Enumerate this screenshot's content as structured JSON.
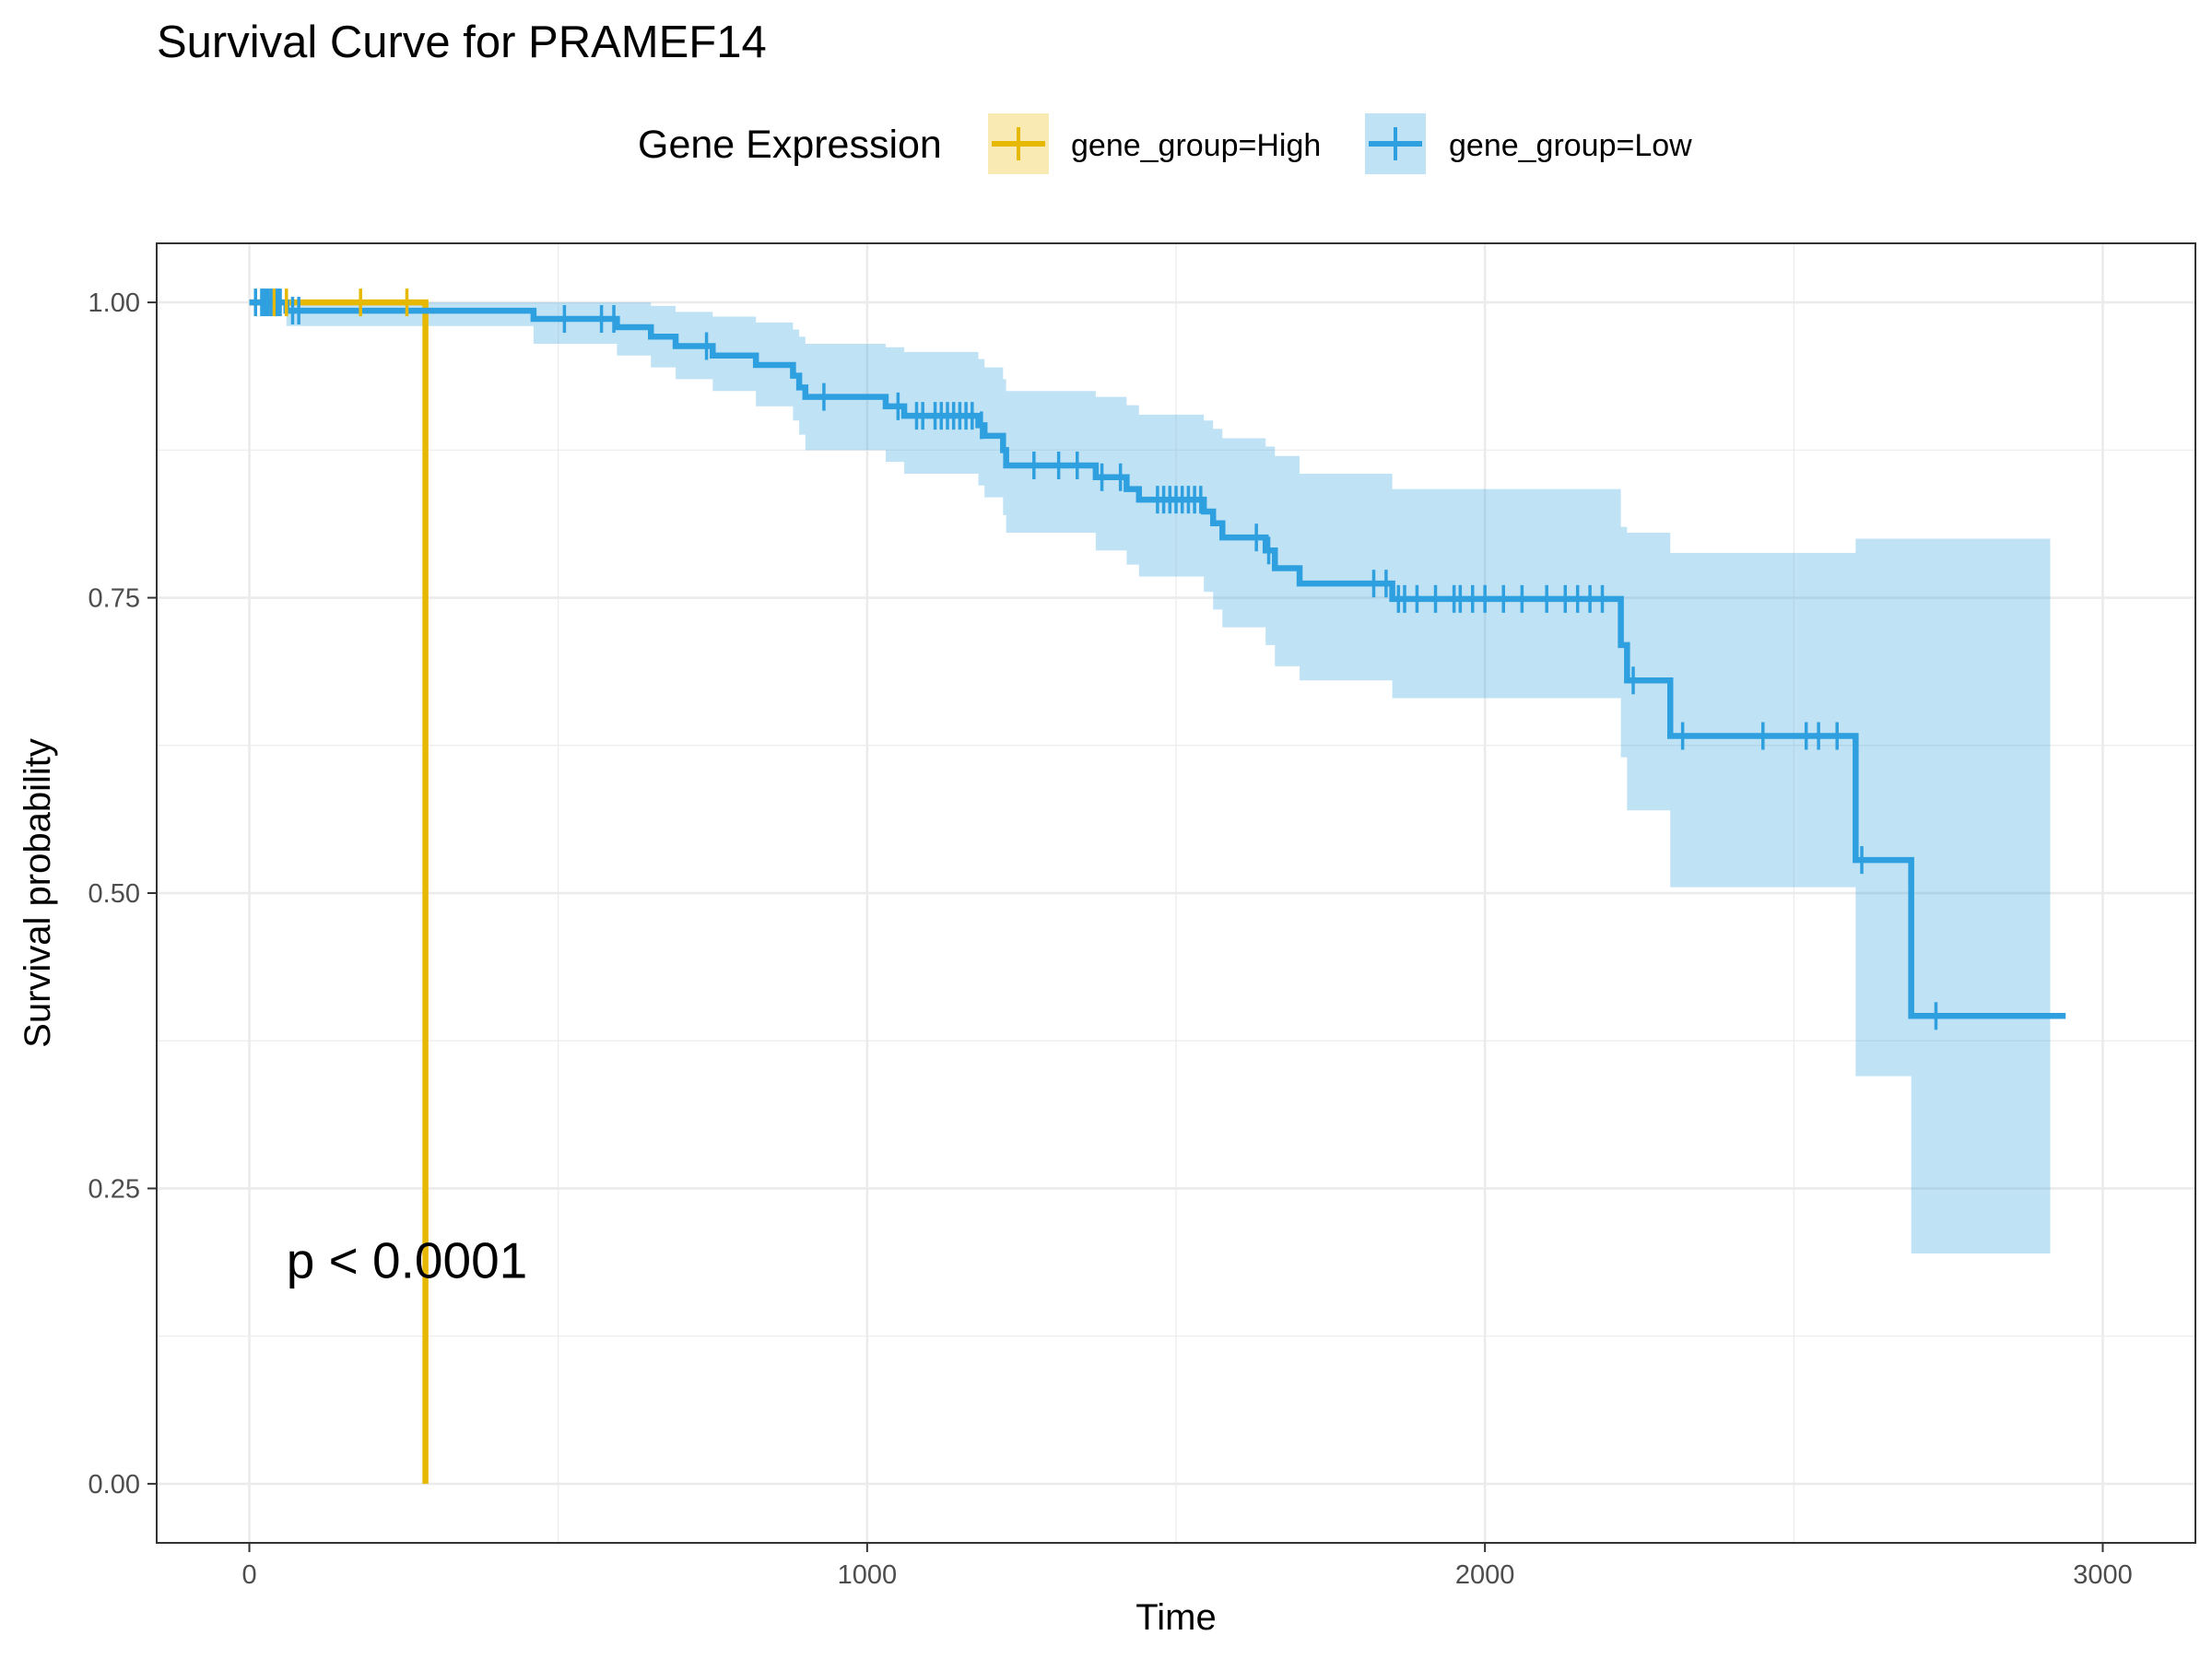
{
  "chart_data": {
    "type": "line",
    "subtype": "kaplan-meier",
    "title": "Survival Curve for PRAMEF14",
    "xlabel": "Time",
    "ylabel": "Survival probability",
    "xlim": [
      -150,
      3150
    ],
    "ylim": [
      -0.05,
      1.05
    ],
    "x_ticks": [
      0,
      1000,
      2000,
      3000
    ],
    "x_tick_labels": [
      "0",
      "1000",
      "2000",
      "3000"
    ],
    "y_ticks": [
      0,
      0.25,
      0.5,
      0.75,
      1.0
    ],
    "y_tick_labels": [
      "0.00",
      "0.25",
      "0.50",
      "0.75",
      "1.00"
    ],
    "grid": true,
    "legend": {
      "title": "Gene Expression",
      "position": "top"
    },
    "annotation": "p < 0.0001",
    "annotation_pos": {
      "x": 60,
      "y": 0.19
    },
    "series": [
      {
        "name": "gene_group=High",
        "color": "#E7B800",
        "steps": [
          [
            0,
            1.0
          ],
          [
            285,
            1.0
          ],
          [
            285,
            0.0
          ]
        ],
        "censor": [
          40,
          60,
          180,
          255
        ],
        "ci": []
      },
      {
        "name": "gene_group=Low",
        "color": "#2E9FDF",
        "steps": [
          [
            0,
            1.0
          ],
          [
            60,
            0.993
          ],
          [
            460,
            0.986
          ],
          [
            595,
            0.979
          ],
          [
            650,
            0.971
          ],
          [
            690,
            0.963
          ],
          [
            750,
            0.955
          ],
          [
            820,
            0.947
          ],
          [
            880,
            0.938
          ],
          [
            890,
            0.928
          ],
          [
            900,
            0.92
          ],
          [
            1030,
            0.912
          ],
          [
            1060,
            0.904
          ],
          [
            1180,
            0.896
          ],
          [
            1190,
            0.887
          ],
          [
            1220,
            0.875
          ],
          [
            1225,
            0.862
          ],
          [
            1370,
            0.852
          ],
          [
            1420,
            0.842
          ],
          [
            1440,
            0.833
          ],
          [
            1545,
            0.823
          ],
          [
            1560,
            0.813
          ],
          [
            1575,
            0.801
          ],
          [
            1645,
            0.79
          ],
          [
            1660,
            0.775
          ],
          [
            1700,
            0.762
          ],
          [
            1850,
            0.749
          ],
          [
            2220,
            0.71
          ],
          [
            2230,
            0.68
          ],
          [
            2300,
            0.633
          ],
          [
            2600,
            0.528
          ],
          [
            2690,
            0.396
          ],
          [
            2940,
            0.396
          ]
        ],
        "censor": [
          10,
          20,
          25,
          30,
          35,
          45,
          50,
          70,
          80,
          510,
          570,
          590,
          740,
          930,
          1050,
          1080,
          1090,
          1110,
          1120,
          1130,
          1140,
          1150,
          1160,
          1170,
          1185,
          1270,
          1310,
          1340,
          1380,
          1410,
          1470,
          1480,
          1490,
          1500,
          1510,
          1520,
          1530,
          1540,
          1630,
          1650,
          1820,
          1840,
          1860,
          1870,
          1890,
          1920,
          1950,
          1960,
          1980,
          2000,
          2030,
          2060,
          2100,
          2130,
          2150,
          2170,
          2190,
          2240,
          2320,
          2450,
          2520,
          2540,
          2570,
          2610,
          2730
        ],
        "ci": [
          [
            0,
            1.0,
            1.0
          ],
          [
            60,
            0.98,
            1.0
          ],
          [
            460,
            0.965,
            1.0
          ],
          [
            595,
            0.955,
            1.0
          ],
          [
            650,
            0.945,
            0.997
          ],
          [
            690,
            0.935,
            0.992
          ],
          [
            750,
            0.925,
            0.988
          ],
          [
            820,
            0.912,
            0.983
          ],
          [
            880,
            0.9,
            0.977
          ],
          [
            890,
            0.888,
            0.971
          ],
          [
            900,
            0.875,
            0.965
          ],
          [
            1030,
            0.865,
            0.962
          ],
          [
            1060,
            0.855,
            0.958
          ],
          [
            1180,
            0.845,
            0.952
          ],
          [
            1190,
            0.835,
            0.945
          ],
          [
            1220,
            0.82,
            0.935
          ],
          [
            1225,
            0.805,
            0.925
          ],
          [
            1370,
            0.79,
            0.92
          ],
          [
            1420,
            0.778,
            0.913
          ],
          [
            1440,
            0.768,
            0.905
          ],
          [
            1545,
            0.755,
            0.9
          ],
          [
            1560,
            0.74,
            0.893
          ],
          [
            1575,
            0.725,
            0.885
          ],
          [
            1645,
            0.71,
            0.878
          ],
          [
            1660,
            0.692,
            0.87
          ],
          [
            1700,
            0.68,
            0.855
          ],
          [
            1850,
            0.665,
            0.842
          ],
          [
            2220,
            0.615,
            0.81
          ],
          [
            2230,
            0.57,
            0.805
          ],
          [
            2300,
            0.505,
            0.788
          ],
          [
            2600,
            0.345,
            0.8
          ],
          [
            2690,
            0.195,
            0.8
          ],
          [
            2915,
            0.195,
            0.8
          ]
        ]
      }
    ]
  }
}
